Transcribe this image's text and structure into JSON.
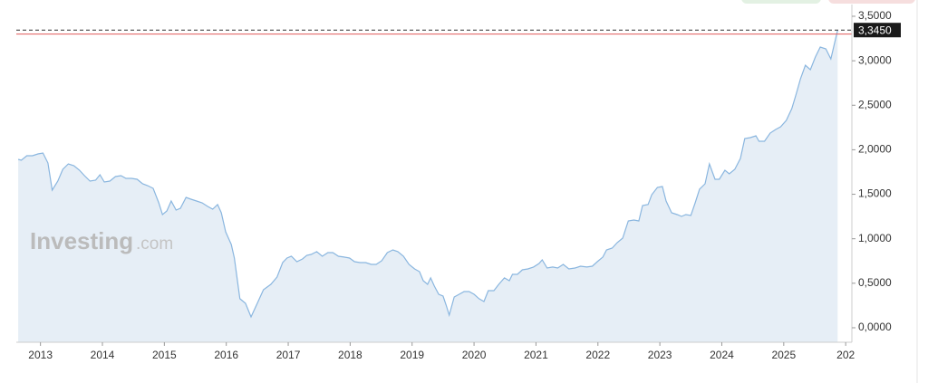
{
  "chart_data": {
    "type": "area",
    "watermark": {
      "brand": "Investing",
      "suffix": ".com"
    },
    "x": [
      2012.64,
      2012.69,
      2012.78,
      2012.87,
      2012.96,
      2013.04,
      2013.12,
      2013.19,
      2013.28,
      2013.36,
      2013.45,
      2013.54,
      2013.63,
      2013.71,
      2013.8,
      2013.89,
      2013.96,
      2014.03,
      2014.12,
      2014.21,
      2014.3,
      2014.38,
      2014.47,
      2014.56,
      2014.65,
      2014.73,
      2014.82,
      2014.91,
      2014.97,
      2015.04,
      2015.11,
      2015.19,
      2015.26,
      2015.35,
      2015.43,
      2015.52,
      2015.61,
      2015.7,
      2015.78,
      2015.86,
      2015.92,
      2015.99,
      2016.08,
      2016.13,
      2016.18,
      2016.22,
      2016.31,
      2016.4,
      2016.5,
      2016.6,
      2016.72,
      2016.82,
      2016.91,
      2016.98,
      2017.05,
      2017.14,
      2017.23,
      2017.3,
      2017.37,
      2017.46,
      2017.55,
      2017.64,
      2017.72,
      2017.81,
      2017.9,
      2017.99,
      2018.07,
      2018.16,
      2018.25,
      2018.34,
      2018.42,
      2018.51,
      2018.6,
      2018.69,
      2018.77,
      2018.86,
      2018.95,
      2019.04,
      2019.12,
      2019.18,
      2019.25,
      2019.3,
      2019.36,
      2019.43,
      2019.5,
      2019.55,
      2019.6,
      2019.68,
      2019.76,
      2019.84,
      2019.92,
      2020.0,
      2020.08,
      2020.16,
      2020.23,
      2020.32,
      2020.4,
      2020.49,
      2020.57,
      2020.62,
      2020.7,
      2020.78,
      2020.87,
      2020.96,
      2021.05,
      2021.1,
      2021.18,
      2021.27,
      2021.35,
      2021.44,
      2021.53,
      2021.63,
      2021.72,
      2021.82,
      2021.91,
      2021.99,
      2022.08,
      2022.14,
      2022.23,
      2022.31,
      2022.4,
      2022.49,
      2022.58,
      2022.66,
      2022.72,
      2022.81,
      2022.87,
      2022.96,
      2023.04,
      2023.1,
      2023.19,
      2023.28,
      2023.35,
      2023.42,
      2023.5,
      2023.57,
      2023.64,
      2023.73,
      2023.8,
      2023.89,
      2023.96,
      2024.05,
      2024.12,
      2024.21,
      2024.3,
      2024.37,
      2024.46,
      2024.55,
      2024.6,
      2024.69,
      2024.78,
      2024.87,
      2024.95,
      2025.04,
      2025.13,
      2025.2,
      2025.27,
      2025.35,
      2025.43,
      2025.51,
      2025.59,
      2025.68,
      2025.76,
      2025.83,
      2025.87
    ],
    "values": [
      1.892,
      1.882,
      1.933,
      1.933,
      1.953,
      1.963,
      1.851,
      1.546,
      1.648,
      1.78,
      1.841,
      1.821,
      1.77,
      1.709,
      1.648,
      1.658,
      1.719,
      1.638,
      1.648,
      1.699,
      1.709,
      1.679,
      1.679,
      1.668,
      1.617,
      1.597,
      1.567,
      1.404,
      1.272,
      1.312,
      1.424,
      1.322,
      1.343,
      1.465,
      1.445,
      1.424,
      1.404,
      1.363,
      1.333,
      1.384,
      1.292,
      1.078,
      0.936,
      0.783,
      0.529,
      0.326,
      0.275,
      0.122,
      0.275,
      0.427,
      0.488,
      0.57,
      0.732,
      0.783,
      0.804,
      0.743,
      0.773,
      0.814,
      0.824,
      0.855,
      0.804,
      0.844,
      0.844,
      0.804,
      0.794,
      0.783,
      0.743,
      0.732,
      0.732,
      0.712,
      0.712,
      0.753,
      0.844,
      0.875,
      0.855,
      0.804,
      0.712,
      0.661,
      0.631,
      0.529,
      0.488,
      0.56,
      0.468,
      0.376,
      0.356,
      0.254,
      0.142,
      0.346,
      0.376,
      0.407,
      0.407,
      0.376,
      0.326,
      0.295,
      0.417,
      0.417,
      0.488,
      0.56,
      0.529,
      0.6,
      0.6,
      0.651,
      0.661,
      0.682,
      0.722,
      0.763,
      0.671,
      0.682,
      0.671,
      0.712,
      0.661,
      0.671,
      0.692,
      0.682,
      0.692,
      0.743,
      0.794,
      0.875,
      0.895,
      0.956,
      1.007,
      1.2,
      1.211,
      1.2,
      1.373,
      1.384,
      1.495,
      1.577,
      1.587,
      1.424,
      1.292,
      1.272,
      1.251,
      1.272,
      1.261,
      1.404,
      1.556,
      1.617,
      1.841,
      1.668,
      1.668,
      1.77,
      1.729,
      1.78,
      1.902,
      2.126,
      2.136,
      2.157,
      2.096,
      2.096,
      2.187,
      2.228,
      2.258,
      2.33,
      2.462,
      2.625,
      2.798,
      2.95,
      2.899,
      3.042,
      3.154,
      3.133,
      3.021,
      3.225,
      3.345
    ],
    "color": "#8ab6df",
    "fill_color": "#e6eef6",
    "current_value": {
      "value": 3.345,
      "label": "3,3450"
    },
    "reference_line": 3.3,
    "reference_color": "#e05a5a",
    "xlim": [
      2012.61,
      2026.1
    ],
    "xticks": [
      2013,
      2014,
      2015,
      2016,
      2017,
      2018,
      2019,
      2020,
      2021,
      2022,
      2023,
      2024,
      2025,
      {
        "value": 2026,
        "label": "202"
      }
    ],
    "ylim": [
      -0.163,
      3.632
    ],
    "yticks": [
      {
        "value": 0,
        "label": "0,0000"
      },
      {
        "value": 0.5,
        "label": "0,5000"
      },
      {
        "value": 1,
        "label": "1,0000"
      },
      {
        "value": 1.5,
        "label": "1,5000"
      },
      {
        "value": 2,
        "label": "2,0000"
      },
      {
        "value": 2.5,
        "label": "2,5000"
      },
      {
        "value": 3,
        "label": "3,0000"
      },
      {
        "value": 3.5,
        "label": "3,5000"
      }
    ],
    "grid": false
  }
}
